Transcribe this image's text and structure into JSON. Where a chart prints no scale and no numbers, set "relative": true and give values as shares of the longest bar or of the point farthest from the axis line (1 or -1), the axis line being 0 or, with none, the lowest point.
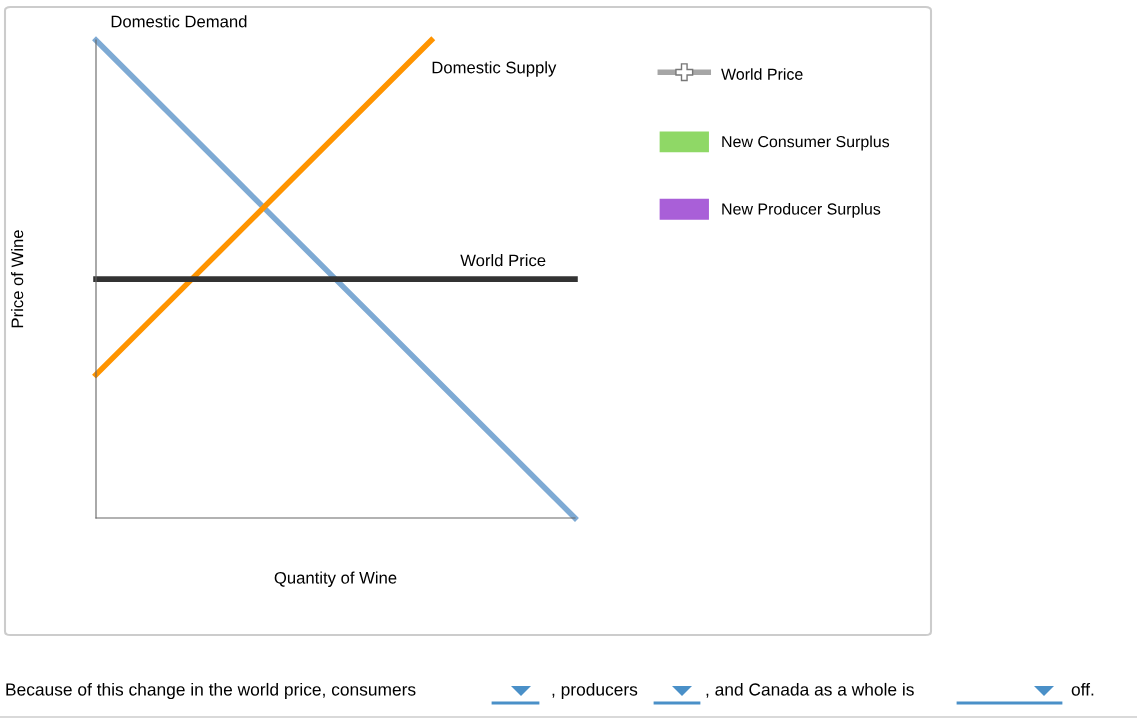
{
  "chart_data": {
    "type": "line",
    "relative": true,
    "xlabel": "Quantity of Wine",
    "ylabel": "Price of Wine",
    "categories": [
      null,
      null,
      null,
      null,
      null,
      null,
      null,
      null,
      null,
      null,
      null
    ],
    "series": [
      {
        "name": "Domestic Demand",
        "color": "#7eaad4",
        "values": [
          1,
          0.9,
          0.8,
          0.7,
          0.6,
          0.5,
          0.4,
          0.3,
          0.2,
          0.1,
          0
        ]
      },
      {
        "name": "Domestic Supply",
        "color": "#ff9400",
        "values": [
          0.3,
          0.4,
          0.5,
          0.6,
          0.7,
          0.8,
          0.9,
          1.0,
          null,
          null,
          null
        ]
      },
      {
        "name": "World Price",
        "color": "#333333",
        "values": [
          0.5,
          0.5,
          0.5,
          0.5,
          0.5,
          0.5,
          0.5,
          0.5,
          0.5,
          0.5,
          0.5
        ]
      },
      {
        "name": "World Price",
        "color": "#a6a6a6",
        "marker": "cross",
        "values": [
          null,
          null,
          null,
          null,
          null,
          null,
          null,
          null,
          null,
          null,
          null
        ]
      },
      {
        "name": "New Consumer Surplus",
        "type": "area",
        "color": "#8fd866",
        "values": [
          null,
          null,
          null,
          null,
          null,
          null,
          null,
          null,
          null,
          null,
          null
        ]
      },
      {
        "name": "New Producer Surplus",
        "type": "area",
        "color": "#a95fd8",
        "values": [
          null,
          null,
          null,
          null,
          null,
          null,
          null,
          null,
          null,
          null,
          null
        ]
      }
    ],
    "legend": "right",
    "grid": false,
    "annotations": [
      "Because of this change in the world price, consumers",
      ", producers",
      ", and Canada as a whole is",
      "off."
    ]
  }
}
